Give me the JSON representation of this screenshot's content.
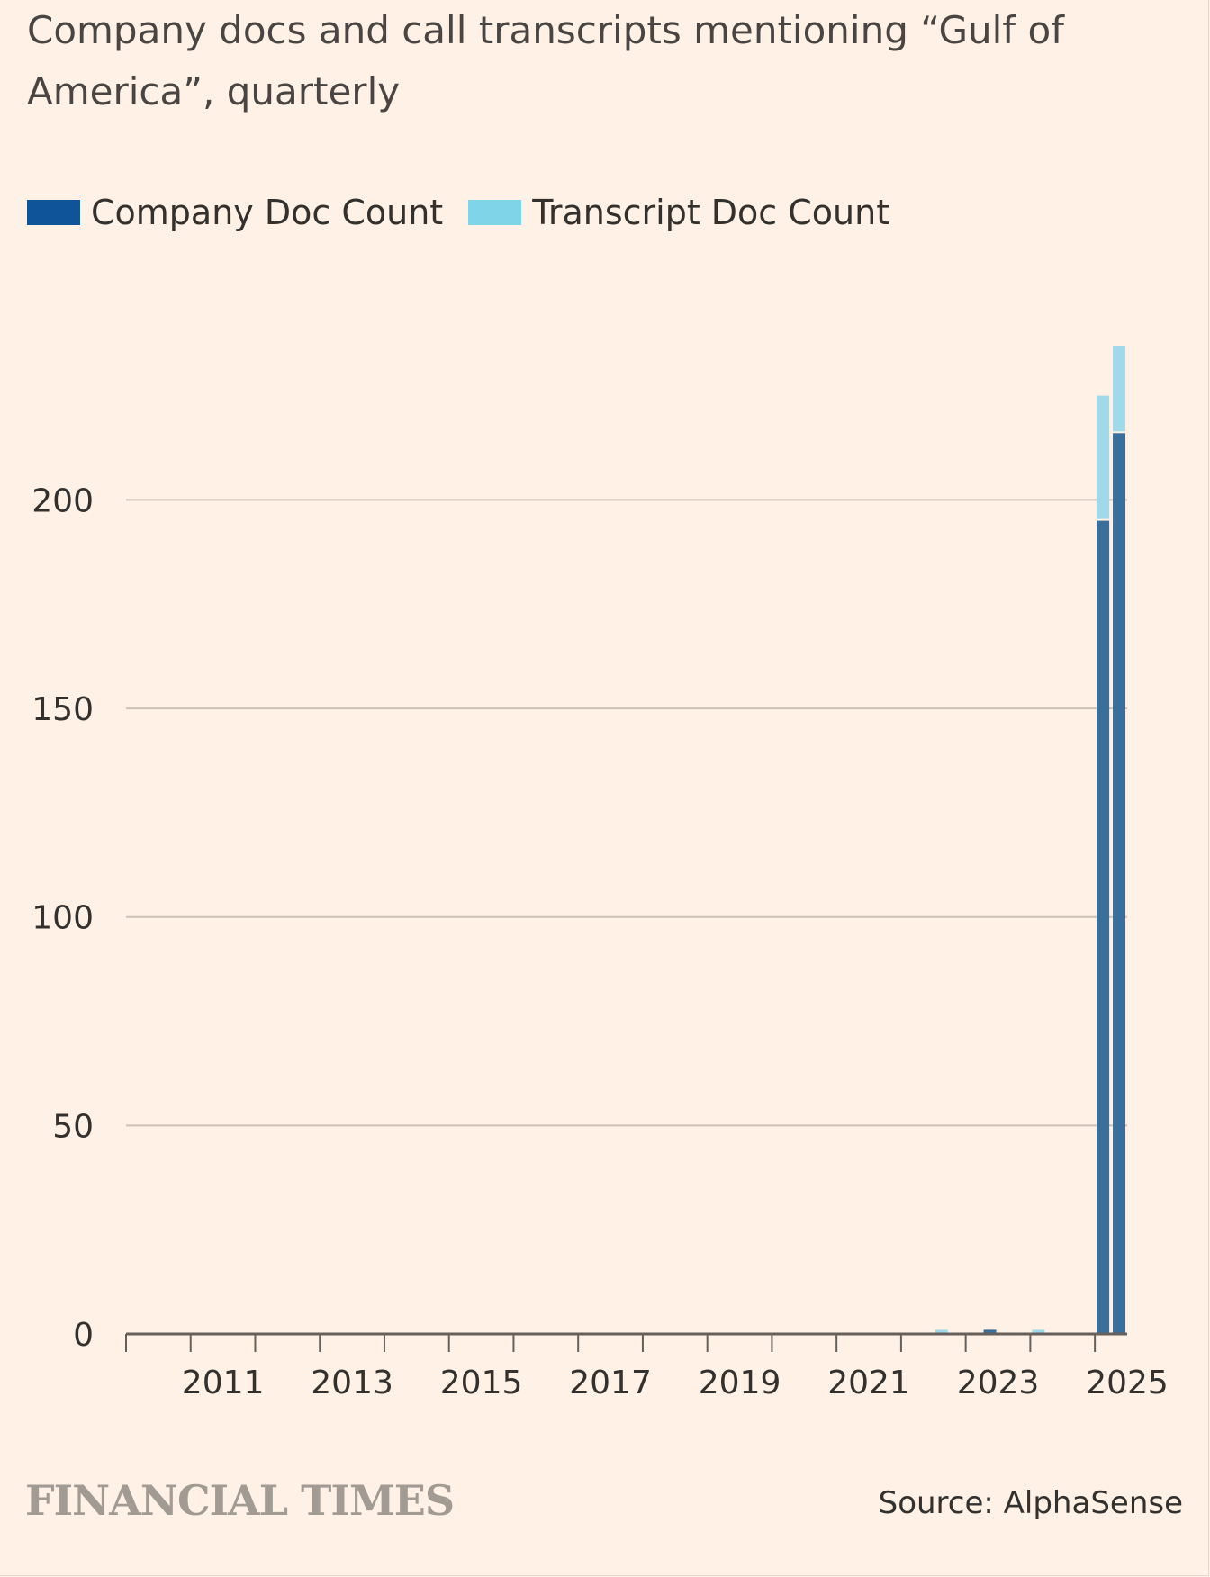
{
  "title": "Company docs and call transcripts mentioning “Gulf of America”, quarterly",
  "legend": [
    {
      "label": "Company Doc Count",
      "color": "#0f5499"
    },
    {
      "label": "Transcript Doc Count",
      "color": "#7fd4e8"
    }
  ],
  "brand": "FINANCIAL TIMES",
  "source": "Source: AlphaSense",
  "chart_data": {
    "type": "bar",
    "stacked": true,
    "title": "Company docs and call transcripts mentioning “Gulf of America”, quarterly",
    "xlabel": "",
    "ylabel": "",
    "x_range": [
      2010.0,
      2025.5
    ],
    "ylim": [
      0,
      237
    ],
    "y_ticks": [
      0,
      50,
      100,
      150,
      200
    ],
    "x_tick_labels": [
      "2011",
      "2013",
      "2015",
      "2017",
      "2019",
      "2021",
      "2023",
      "2025"
    ],
    "grid": true,
    "legend_position": "top-left",
    "categories": [
      "2022 Q3",
      "2023 Q2",
      "2024 Q1",
      "2025 Q1",
      "2025 Q2"
    ],
    "series": [
      {
        "name": "Company Doc Count",
        "color": "#3a6f9c",
        "values": [
          0,
          1,
          0,
          195,
          216
        ]
      },
      {
        "name": "Transcript Doc Count",
        "color": "#a0d9ea",
        "values": [
          1,
          0,
          1,
          30,
          21
        ]
      }
    ]
  }
}
